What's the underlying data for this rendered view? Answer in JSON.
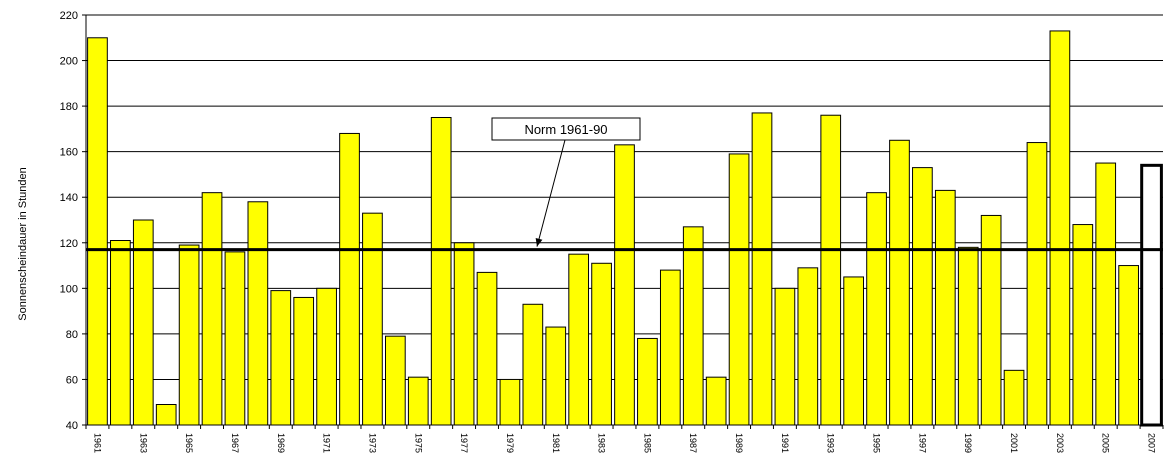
{
  "chart_data": {
    "type": "bar",
    "title": "",
    "xlabel": "",
    "ylabel": "Sonnenscheindauer in Stunden",
    "ylim": [
      40,
      220
    ],
    "yticks": [
      40,
      60,
      80,
      100,
      120,
      140,
      160,
      180,
      200,
      220
    ],
    "grid": true,
    "categories": [
      "1961",
      "1962",
      "1963",
      "1964",
      "1965",
      "1966",
      "1967",
      "1968",
      "1969",
      "1970",
      "1971",
      "1972",
      "1973",
      "1974",
      "1975",
      "1976",
      "1977",
      "1978",
      "1979",
      "1980",
      "1981",
      "1982",
      "1983",
      "1984",
      "1985",
      "1986",
      "1987",
      "1988",
      "1989",
      "1990",
      "1991",
      "1992",
      "1993",
      "1994",
      "1995",
      "1996",
      "1997",
      "1998",
      "1999",
      "2000",
      "2001",
      "2002",
      "2003",
      "2004",
      "2005",
      "2006",
      "2007"
    ],
    "tick_labels": [
      "1961",
      "1963",
      "1965",
      "1967",
      "1969",
      "1971",
      "1973",
      "1975",
      "1977",
      "1979",
      "1981",
      "1983",
      "1985",
      "1987",
      "1989",
      "1991",
      "1993",
      "1995",
      "1997",
      "1999",
      "2001",
      "2003",
      "2005",
      "2007"
    ],
    "values": [
      210,
      121,
      130,
      49,
      119,
      142,
      116,
      138,
      99,
      96,
      100,
      168,
      133,
      79,
      61,
      175,
      120,
      107,
      60,
      93,
      83,
      115,
      111,
      163,
      78,
      108,
      127,
      61,
      159,
      177,
      100,
      109,
      176,
      105,
      142,
      165,
      153,
      143,
      118,
      132,
      64,
      164,
      213,
      128,
      155,
      110,
      154
    ],
    "bar_color": "#ffff00",
    "highlight": {
      "category": "2007",
      "color": "#ffffff"
    },
    "reference_line": {
      "label": "Norm 1961-90",
      "value": 117,
      "color": "#000000"
    }
  }
}
